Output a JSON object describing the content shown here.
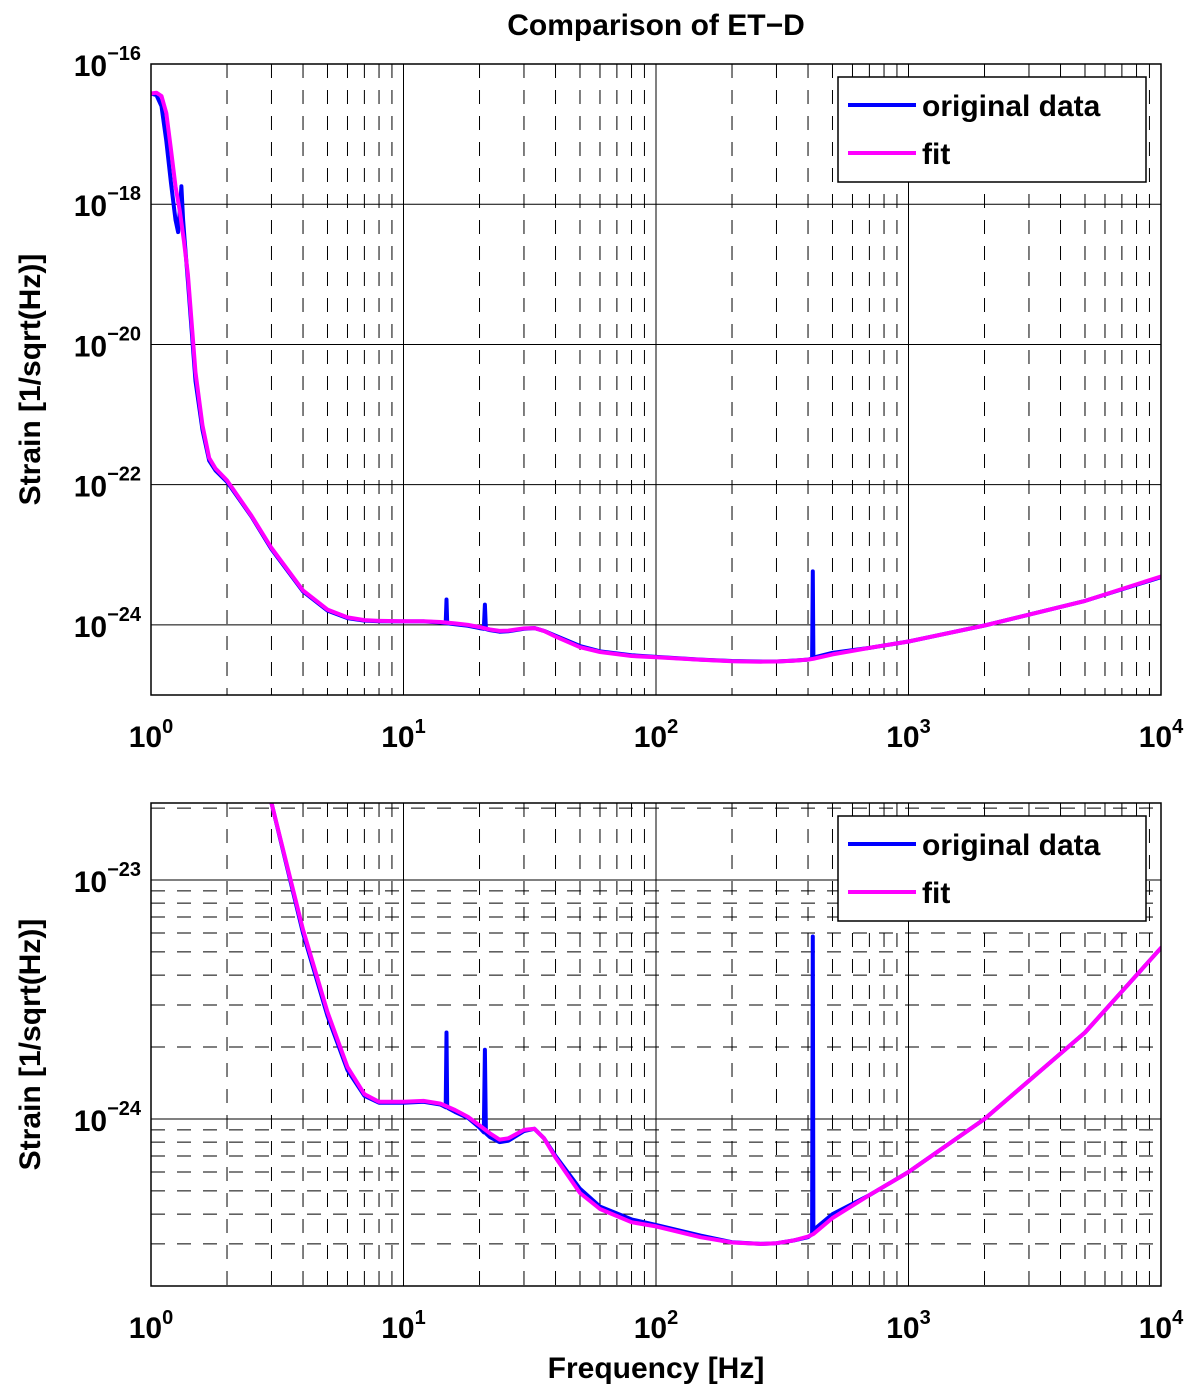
{
  "figure": {
    "title": "Comparison of ET−D",
    "xlabel": "Frequency [Hz]"
  },
  "chart_data": [
    {
      "type": "line",
      "title": "Comparison of ET−D",
      "xlabel": "",
      "ylabel": "Strain [1/sqrt(Hz)]",
      "xscale": "log",
      "yscale": "log",
      "xlim": [
        1,
        10000
      ],
      "ylim": [
        1e-25,
        1e-16
      ],
      "xticks": [
        1,
        10,
        100,
        1000,
        10000
      ],
      "xtick_labels": [
        {
          "base": "10",
          "exp": "0"
        },
        {
          "base": "10",
          "exp": "1"
        },
        {
          "base": "10",
          "exp": "2"
        },
        {
          "base": "10",
          "exp": "3"
        },
        {
          "base": "10",
          "exp": "4"
        }
      ],
      "yticks": [
        1e-24,
        1e-22,
        1e-20,
        1e-18,
        1e-16
      ],
      "ytick_labels": [
        {
          "base": "10",
          "exp": "−24"
        },
        {
          "base": "10",
          "exp": "−22"
        },
        {
          "base": "10",
          "exp": "−20"
        },
        {
          "base": "10",
          "exp": "−18"
        },
        {
          "base": "10",
          "exp": "−16"
        }
      ],
      "grid": true,
      "legend": "top-right",
      "series": [
        {
          "name": "original data",
          "color": "#0000ff",
          "x": [
            1.0,
            1.05,
            1.1,
            1.15,
            1.2,
            1.25,
            1.28,
            1.3,
            1.32,
            1.34,
            1.36,
            1.4,
            1.5,
            1.6,
            1.7,
            1.8,
            2.0,
            2.5,
            3,
            4,
            5,
            6,
            7,
            8,
            10,
            12,
            14,
            14.7,
            14.8,
            14.9,
            15.0,
            16,
            18,
            20,
            20.8,
            21.0,
            21.2,
            22,
            24,
            26,
            30,
            33,
            36,
            40,
            50,
            60,
            80,
            100,
            150,
            200,
            260,
            300,
            350,
            400,
            415,
            418,
            420,
            422,
            430,
            500,
            700,
            1000,
            2000,
            5000,
            10000
          ],
          "y": [
            3.8e-17,
            3.6e-17,
            2.5e-17,
            8e-18,
            2e-18,
            6e-19,
            4e-19,
            8e-19,
            1.8e-18,
            6e-19,
            3e-19,
            8e-20,
            3e-21,
            6e-22,
            2.2e-22,
            1.6e-22,
            1.1e-22,
            3.5e-23,
            1.2e-23,
            3e-24,
            1.6e-24,
            1.25e-24,
            1.15e-24,
            1.13e-24,
            1.12e-24,
            1.12e-24,
            1.08e-24,
            1.06e-24,
            2.3e-24,
            1.06e-24,
            1.05e-24,
            1.02e-24,
            9.7e-25,
            9e-25,
            8.8e-25,
            1.95e-24,
            8.7e-25,
            8.4e-25,
            8e-25,
            8.1e-25,
            8.8e-25,
            9e-25,
            8.2e-25,
            7e-25,
            5e-25,
            4.2e-25,
            3.7e-25,
            3.5e-25,
            3.2e-25,
            3.05e-25,
            3e-25,
            3e-25,
            3.1e-25,
            3.2e-25,
            3.3e-25,
            5.8e-24,
            3.4e-25,
            3.4e-25,
            3.5e-25,
            4e-25,
            4.7e-25,
            5.8e-25,
            9.8e-25,
            2.2e-24,
            4.8e-24
          ]
        },
        {
          "name": "fit",
          "color": "#ff00ff",
          "x": [
            1.0,
            1.05,
            1.1,
            1.15,
            1.2,
            1.25,
            1.3,
            1.35,
            1.4,
            1.5,
            1.6,
            1.7,
            1.8,
            2.0,
            2.5,
            3,
            4,
            5,
            6,
            7,
            8,
            10,
            12,
            14,
            16,
            18,
            20,
            22,
            24,
            26,
            30,
            33,
            36,
            40,
            50,
            60,
            80,
            100,
            150,
            200,
            260,
            300,
            350,
            400,
            420,
            430,
            500,
            700,
            1000,
            2000,
            5000,
            10000
          ],
          "y": [
            3.8e-17,
            3.9e-17,
            3.5e-17,
            2e-17,
            6e-18,
            1.8e-18,
            8e-19,
            3e-19,
            1e-19,
            4e-21,
            7e-22,
            2.4e-22,
            1.7e-22,
            1.15e-22,
            3.6e-23,
            1.25e-23,
            3.1e-24,
            1.65e-24,
            1.28e-24,
            1.17e-24,
            1.14e-24,
            1.13e-24,
            1.13e-24,
            1.1e-24,
            1.05e-24,
            1e-24,
            9.3e-25,
            8.6e-25,
            8.2e-25,
            8.3e-25,
            8.9e-25,
            9e-25,
            8.2e-25,
            6.8e-25,
            4.8e-25,
            4.1e-25,
            3.6e-25,
            3.45e-25,
            3.18e-25,
            3.03e-25,
            2.99e-25,
            3e-25,
            3.08e-25,
            3.2e-25,
            3.28e-25,
            3.35e-25,
            3.8e-25,
            4.7e-25,
            5.8e-25,
            9.8e-25,
            2.2e-24,
            4.9e-24
          ]
        }
      ]
    },
    {
      "type": "line",
      "title": "",
      "xlabel": "Frequency [Hz]",
      "ylabel": "Strain [1/sqrt(Hz)]",
      "xscale": "log",
      "yscale": "log",
      "xlim": [
        1,
        10000
      ],
      "ylim": [
        2e-25,
        2.1e-23
      ],
      "xticks": [
        1,
        10,
        100,
        1000,
        10000
      ],
      "xtick_labels": [
        {
          "base": "10",
          "exp": "0"
        },
        {
          "base": "10",
          "exp": "1"
        },
        {
          "base": "10",
          "exp": "2"
        },
        {
          "base": "10",
          "exp": "3"
        },
        {
          "base": "10",
          "exp": "4"
        }
      ],
      "yticks": [
        1e-24,
        1e-23
      ],
      "ytick_labels": [
        {
          "base": "10",
          "exp": "−24"
        },
        {
          "base": "10",
          "exp": "−23"
        }
      ],
      "grid": true,
      "legend": "top-right",
      "series": [
        {
          "name": "original data",
          "color": "#0000ff",
          "x": [
            3.0,
            4,
            5,
            6,
            7,
            8,
            10,
            12,
            14,
            14.7,
            14.8,
            14.9,
            15.0,
            16,
            18,
            20,
            20.8,
            21.0,
            21.2,
            22,
            24,
            26,
            30,
            33,
            36,
            40,
            50,
            60,
            80,
            100,
            150,
            200,
            260,
            300,
            350,
            400,
            415,
            418,
            420,
            422,
            430,
            500,
            700,
            1000,
            2000,
            5000,
            10000
          ],
          "y": [
            2.1e-23,
            6e-24,
            2.7e-24,
            1.6e-24,
            1.25e-24,
            1.17e-24,
            1.17e-24,
            1.18e-24,
            1.15e-24,
            1.12e-24,
            2.3e-24,
            1.12e-24,
            1.11e-24,
            1.07e-24,
            1.01e-24,
            9.2e-25,
            8.8e-25,
            1.95e-24,
            8.7e-25,
            8.4e-25,
            8e-25,
            8.1e-25,
            8.9e-25,
            9.1e-25,
            8.3e-25,
            7e-25,
            5.1e-25,
            4.3e-25,
            3.8e-25,
            3.6e-25,
            3.25e-25,
            3.05e-25,
            3e-25,
            3.02e-25,
            3.1e-25,
            3.2e-25,
            3.3e-25,
            5.8e-24,
            3.4e-25,
            3.4e-25,
            3.5e-25,
            4e-25,
            4.8e-25,
            6e-25,
            1e-24,
            2.3e-24,
            5.2e-24
          ]
        },
        {
          "name": "fit",
          "color": "#ff00ff",
          "x": [
            3.0,
            4,
            5,
            6,
            7,
            8,
            10,
            12,
            14,
            16,
            18,
            20,
            22,
            24,
            26,
            30,
            33,
            36,
            40,
            50,
            60,
            80,
            100,
            150,
            200,
            260,
            300,
            350,
            400,
            420,
            430,
            500,
            700,
            1000,
            2000,
            5000,
            10000
          ],
          "y": [
            2.1e-23,
            6.2e-24,
            2.8e-24,
            1.65e-24,
            1.27e-24,
            1.18e-24,
            1.18e-24,
            1.19e-24,
            1.16e-24,
            1.09e-24,
            1.02e-24,
            9.4e-25,
            8.7e-25,
            8.2e-25,
            8.3e-25,
            9e-25,
            9.1e-25,
            8.3e-25,
            6.9e-25,
            4.9e-25,
            4.2e-25,
            3.7e-25,
            3.55e-25,
            3.2e-25,
            3.04e-25,
            3e-25,
            3.02e-25,
            3.1e-25,
            3.22e-25,
            3.3e-25,
            3.37e-25,
            3.85e-25,
            4.8e-25,
            6e-25,
            1e-24,
            2.3e-24,
            5.2e-24
          ]
        }
      ]
    }
  ]
}
